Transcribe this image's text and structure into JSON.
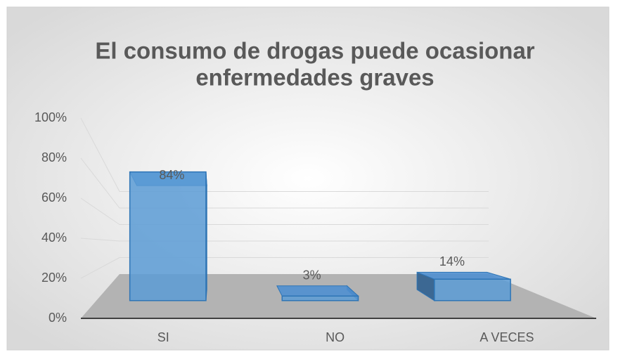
{
  "chart_data": {
    "type": "bar3d",
    "title": [
      "El consumo de drogas puede ocasionar",
      "enfermedades graves"
    ],
    "categories": [
      "SI",
      "NO",
      "A VECES"
    ],
    "values": [
      84,
      3,
      14
    ],
    "value_labels": [
      "84%",
      "3%",
      "14%"
    ],
    "color": "#5b9bd5",
    "ylim": [
      0,
      100
    ],
    "yticks": [
      {
        "value": 0,
        "label": "0%"
      },
      {
        "value": 20,
        "label": "20%"
      },
      {
        "value": 40,
        "label": "40%"
      },
      {
        "value": 60,
        "label": "60%"
      },
      {
        "value": 80,
        "label": "80%"
      },
      {
        "value": 100,
        "label": "100%"
      }
    ],
    "grid": true
  }
}
